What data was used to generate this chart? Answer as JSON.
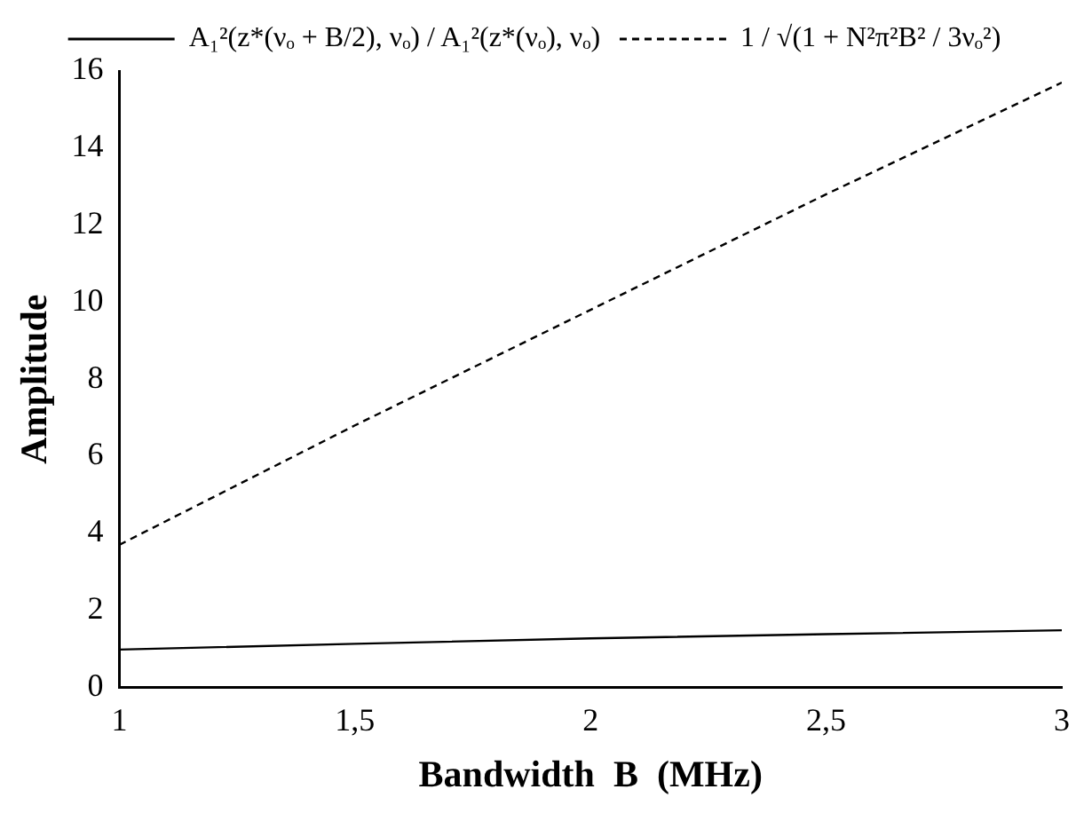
{
  "chart_data": {
    "type": "line",
    "xlabel": "Bandwidth  B  (MHz)",
    "ylabel": "Amplitude",
    "x": [
      1,
      1.5,
      2,
      2.5,
      3
    ],
    "series": [
      {
        "name": "A₁²(z*(νₒ + B/2), νₒ) / A₁²(z*(νₒ), νₒ)",
        "color": "#000000",
        "line_style": "solid",
        "values": [
          0.98,
          1.13,
          1.27,
          1.38,
          1.48
        ]
      },
      {
        "name": "1 / √(1 + N²π²B² / 3νₒ²)",
        "color": "#000000",
        "line_style": "dashed",
        "values": [
          3.7,
          6.8,
          9.8,
          12.8,
          15.7
        ]
      }
    ],
    "xlim": [
      1,
      3
    ],
    "xticks": [
      1,
      {
        "value": 1.5,
        "label": "1,5"
      },
      2,
      {
        "value": 2.5,
        "label": "2,5"
      },
      3
    ],
    "ylim": [
      0,
      16
    ],
    "yticks": [
      0,
      2,
      4,
      6,
      8,
      10,
      12,
      14,
      16
    ],
    "grid": false,
    "legend": "top",
    "marker": "none"
  }
}
